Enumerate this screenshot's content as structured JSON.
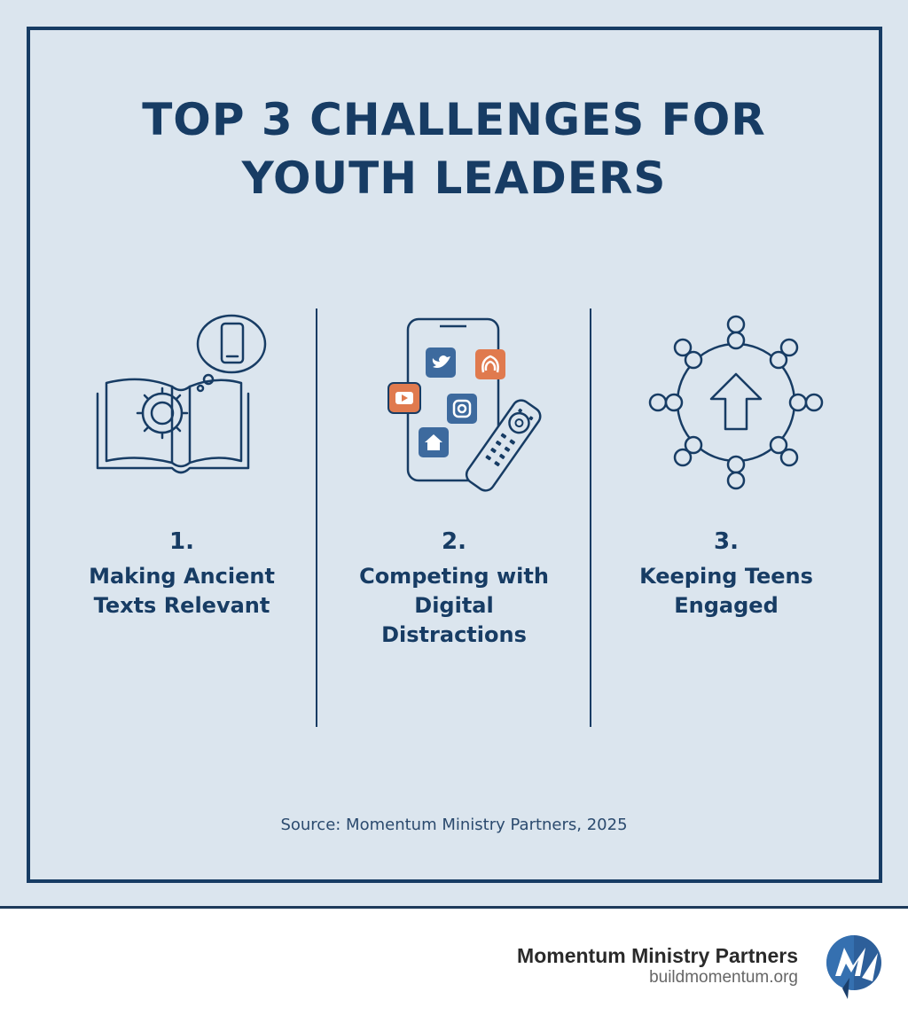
{
  "title": {
    "line1": "TOP 3 CHALLENGES FOR",
    "line2": "YOUTH LEADERS"
  },
  "challenges": [
    {
      "number": "1.",
      "label_line1": "Making Ancient",
      "label_line2": "Texts Relevant",
      "icon": "book-gear-phone-icon"
    },
    {
      "number": "2.",
      "label_line1": "Competing with",
      "label_line2": "Digital",
      "label_line3": "Distractions",
      "icon": "phone-social-apps-remote-icon"
    },
    {
      "number": "3.",
      "label_line1": "Keeping Teens",
      "label_line2": "Engaged",
      "icon": "people-circle-arrow-up-icon"
    }
  ],
  "source": "Source: Momentum Ministry Partners, 2025",
  "footer": {
    "brand_name": "Momentum Ministry Partners",
    "brand_url": "buildmomentum.org",
    "logo_icon": "momentum-m-logo-icon"
  },
  "colors": {
    "navy": "#173c64",
    "background": "#dbe5ee",
    "orange": "#e07a4e",
    "icon_blue": "#3d6a9e"
  }
}
